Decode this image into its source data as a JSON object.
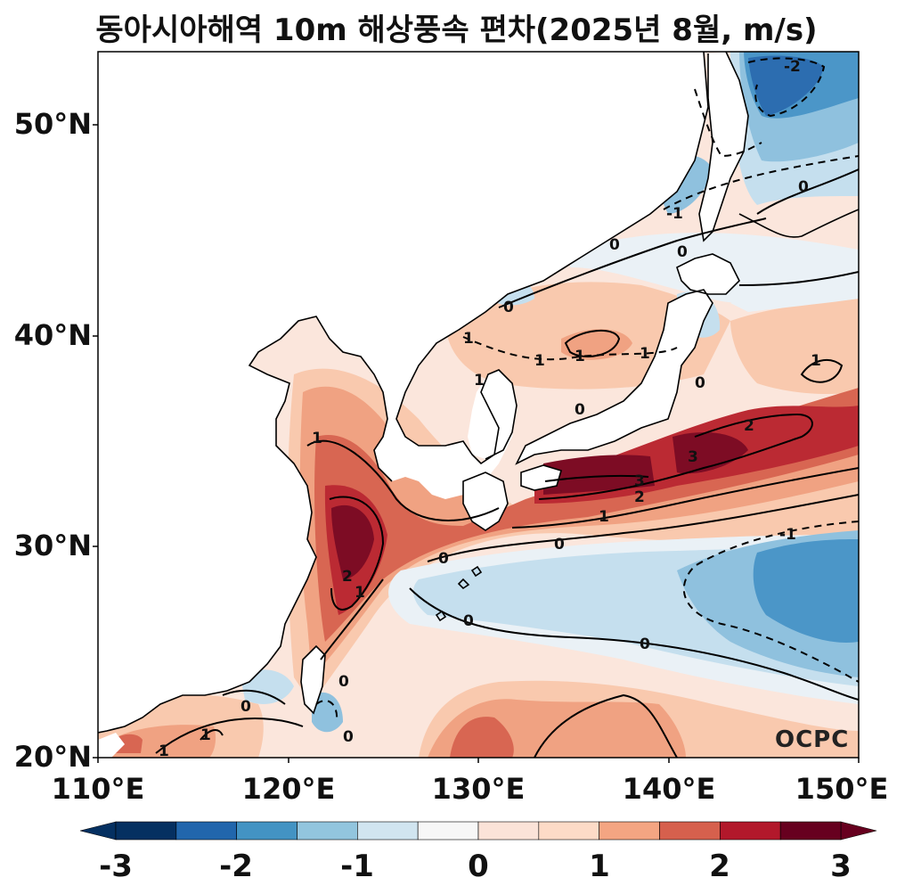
{
  "title": "동아시아해역 10m 해상풍속 편차(2025년 8월, m/s)",
  "logo_text": "OCPC",
  "map": {
    "extent": {
      "lon": [
        110,
        150
      ],
      "lat": [
        20,
        53.5
      ]
    },
    "lat_ticks": [
      "50°N",
      "40°N",
      "30°N",
      "20°N"
    ],
    "lon_ticks": [
      "110°E",
      "120°E",
      "130°E",
      "140°E",
      "150°E"
    ],
    "variable": "10m sea surface wind speed anomaly",
    "units": "m/s",
    "contour_labels": [
      "-2",
      "-1",
      "0",
      "1",
      "2",
      "3"
    ]
  },
  "colorbar": {
    "ticks": [
      "-3",
      "-2",
      "-1",
      "0",
      "1",
      "2",
      "3"
    ],
    "levels": [
      -3,
      -2.5,
      -2,
      -1.5,
      -1,
      -0.5,
      0,
      0.5,
      1,
      1.5,
      2,
      2.5,
      3
    ],
    "colors": [
      "#053061",
      "#2166ac",
      "#4393c3",
      "#92c5de",
      "#d1e5f0",
      "#f7f7f7",
      "#fbe3d8",
      "#fddbc7",
      "#f4a582",
      "#d6604d",
      "#b2182b",
      "#67001f"
    ],
    "extend": "both"
  },
  "colors": {
    "neg3": "#0b3a72",
    "neg2": "#2c6db0",
    "neg15": "#4b96c8",
    "neg1": "#8fc1de",
    "neg05": "#c5dfee",
    "zero": "#eaf1f6",
    "pos05": "#fbe6dc",
    "pos1": "#f9c9ae",
    "pos15": "#f0a282",
    "pos2": "#d86652",
    "pos25": "#bb2a33",
    "pos3": "#7d0c24",
    "land": "#ffffff",
    "coast": "#000000"
  }
}
